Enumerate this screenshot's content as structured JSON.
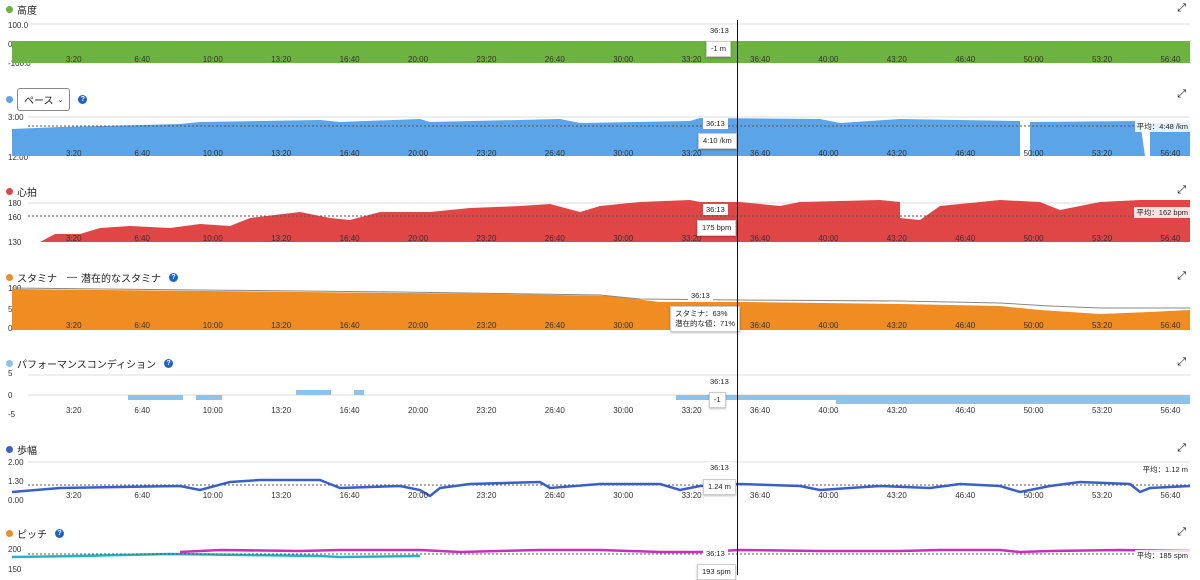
{
  "cursor_time": "36:13",
  "x_ticks": [
    "3:20",
    "6:40",
    "10:00",
    "13:20",
    "16:40",
    "20:00",
    "23:20",
    "26:40",
    "30:00",
    "33:20",
    "36:40",
    "40:00",
    "43:20",
    "46:40",
    "50:00",
    "53:20",
    "56:40"
  ],
  "panels": {
    "altitude": {
      "title": "高度",
      "color": "#6db33f",
      "y_top": "100.0",
      "y_mid": "0",
      "y_bot": "-100.0",
      "tooltip": "-1 m",
      "icon": "expand-icon"
    },
    "pace": {
      "title": "ペース",
      "dropdown": "ペース",
      "color": "#5ba4e8",
      "y_top": "3:00",
      "y_bot": "12:00",
      "tooltip": "4:10 /km",
      "avg": "平均：4:48 /km"
    },
    "heart": {
      "title": "心拍",
      "color": "#e04646",
      "y_top": "180",
      "y_mid": "160",
      "y_bot": "130",
      "tooltip": "175 bpm",
      "avg": "平均：162 bpm"
    },
    "stamina": {
      "title": "スタミナ",
      "legend2": "潜在的なスタミナ",
      "color": "#ef8c22",
      "y_top": "100",
      "y_mid": "50",
      "y_bot": "0",
      "tooltip_line1": "スタミナ：63%",
      "tooltip_line2": "潜在的な値：71%"
    },
    "performance": {
      "title": "パフォーマンスコンディション",
      "color": "#8cc3ec",
      "y_top": "5",
      "y_mid": "0",
      "y_bot": "-5",
      "tooltip": "-1"
    },
    "stride": {
      "title": "歩幅",
      "color": "#3a5fcd",
      "y_top": "2.00",
      "y_mid": "1.30",
      "y_bot": "0.00",
      "tooltip": "1.24 m",
      "avg": "平均：1.12 m"
    },
    "cadence": {
      "title": "ピッチ",
      "color": "#ef8c22",
      "y_top": "200",
      "y_bot": "150",
      "tooltip": "193 spm",
      "avg": "平均：185 spm"
    }
  },
  "chart_data": [
    {
      "type": "area",
      "title": "高度",
      "ylim": [
        -100,
        100
      ],
      "values": [
        2,
        1,
        2,
        1,
        0,
        1,
        2,
        1,
        0,
        -1,
        -1,
        0,
        1,
        2,
        1,
        0,
        1
      ]
    },
    {
      "type": "area",
      "title": "ペース",
      "ylim": [
        3,
        12
      ],
      "values": [
        4.5,
        4.3,
        4.2,
        4.1,
        4.3,
        4.2,
        4.2,
        4.2,
        4.2,
        4.3,
        4.1,
        4.2,
        4.1,
        4.2,
        4.3,
        4.2,
        4.4
      ]
    },
    {
      "type": "area",
      "title": "心拍",
      "ylim": [
        130,
        180
      ],
      "values": [
        138,
        148,
        152,
        160,
        168,
        165,
        170,
        172,
        170,
        174,
        175,
        175,
        170,
        174,
        172,
        175,
        173
      ]
    },
    {
      "type": "area",
      "title": "スタミナ",
      "ylim": [
        0,
        100
      ],
      "series": [
        {
          "name": "スタミナ",
          "values": [
            97,
            95,
            93,
            90,
            88,
            86,
            84,
            80,
            75,
            68,
            63,
            60,
            55,
            50,
            42,
            38,
            40
          ]
        },
        {
          "name": "潜在的なスタミナ",
          "values": [
            98,
            96,
            95,
            93,
            91,
            90,
            88,
            86,
            82,
            76,
            71,
            68,
            65,
            60,
            55,
            48,
            45
          ]
        }
      ]
    },
    {
      "type": "bar",
      "title": "パフォーマンスコンディション",
      "ylim": [
        -5,
        5
      ],
      "values": [
        0,
        -1,
        -1,
        1,
        1,
        0,
        0,
        0,
        0,
        -1,
        -1,
        -1,
        -2,
        -2,
        -2,
        -2,
        -2
      ]
    },
    {
      "type": "scatter",
      "title": "歩幅",
      "ylim": [
        0,
        2
      ],
      "values": [
        1.2,
        1.22,
        1.25,
        1.3,
        1.3,
        1.2,
        1.25,
        1.28,
        1.26,
        1.24,
        1.24,
        1.22,
        1.2,
        1.2,
        1.18,
        1.25,
        1.22
      ]
    },
    {
      "type": "scatter",
      "title": "ピッチ",
      "ylim": [
        150,
        200
      ],
      "values": [
        183,
        184,
        186,
        188,
        190,
        189,
        190,
        191,
        192,
        188,
        193,
        191,
        190,
        192,
        190,
        191,
        192
      ]
    }
  ]
}
